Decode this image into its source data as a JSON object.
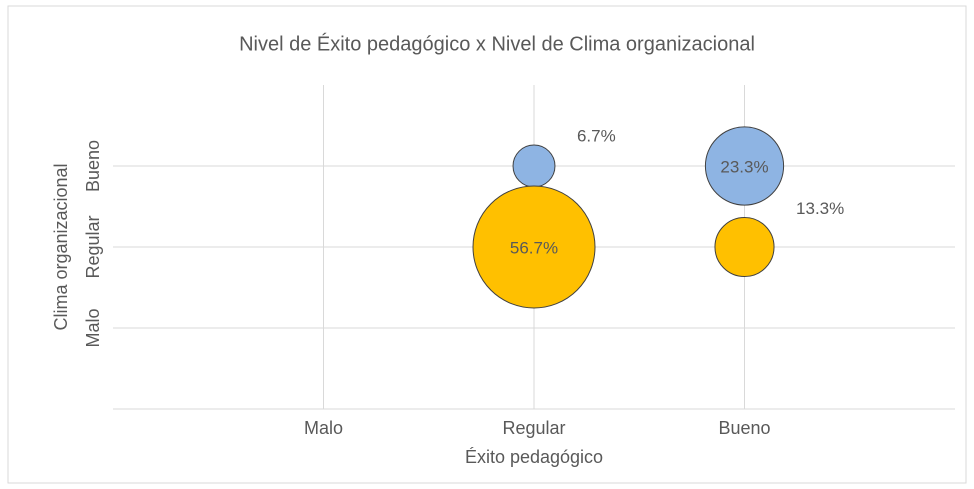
{
  "chart_data": {
    "type": "bubble",
    "title": "Nivel de Éxito pedagógico x Nivel de Clima organizacional",
    "x_label": "Éxito pedagógico",
    "y_label": "Clima organizacional",
    "xlim": [
      0,
      4
    ],
    "xticks": [
      {
        "value": 1,
        "label": "Malo"
      },
      {
        "value": 2,
        "label": "Regular"
      },
      {
        "value": 3,
        "label": "Bueno"
      }
    ],
    "ylim": [
      0,
      4
    ],
    "yticks": [
      {
        "value": 1,
        "label": "Malo"
      },
      {
        "value": 2,
        "label": "Regular"
      },
      {
        "value": 3,
        "label": "Bueno"
      }
    ],
    "grid": true,
    "series": [
      {
        "color": "#8eb4e3",
        "x": [
          2,
          3
        ],
        "y": [
          3,
          3
        ],
        "sizes": [
          6.7,
          23.3
        ],
        "value_labels": [
          "6.7%",
          "23.3%"
        ]
      },
      {
        "color": "#ffc000",
        "x": [
          2,
          3
        ],
        "y": [
          2,
          2
        ],
        "sizes": [
          56.7,
          13.3
        ],
        "value_labels": [
          "56.7%",
          "13.3%"
        ]
      }
    ]
  }
}
